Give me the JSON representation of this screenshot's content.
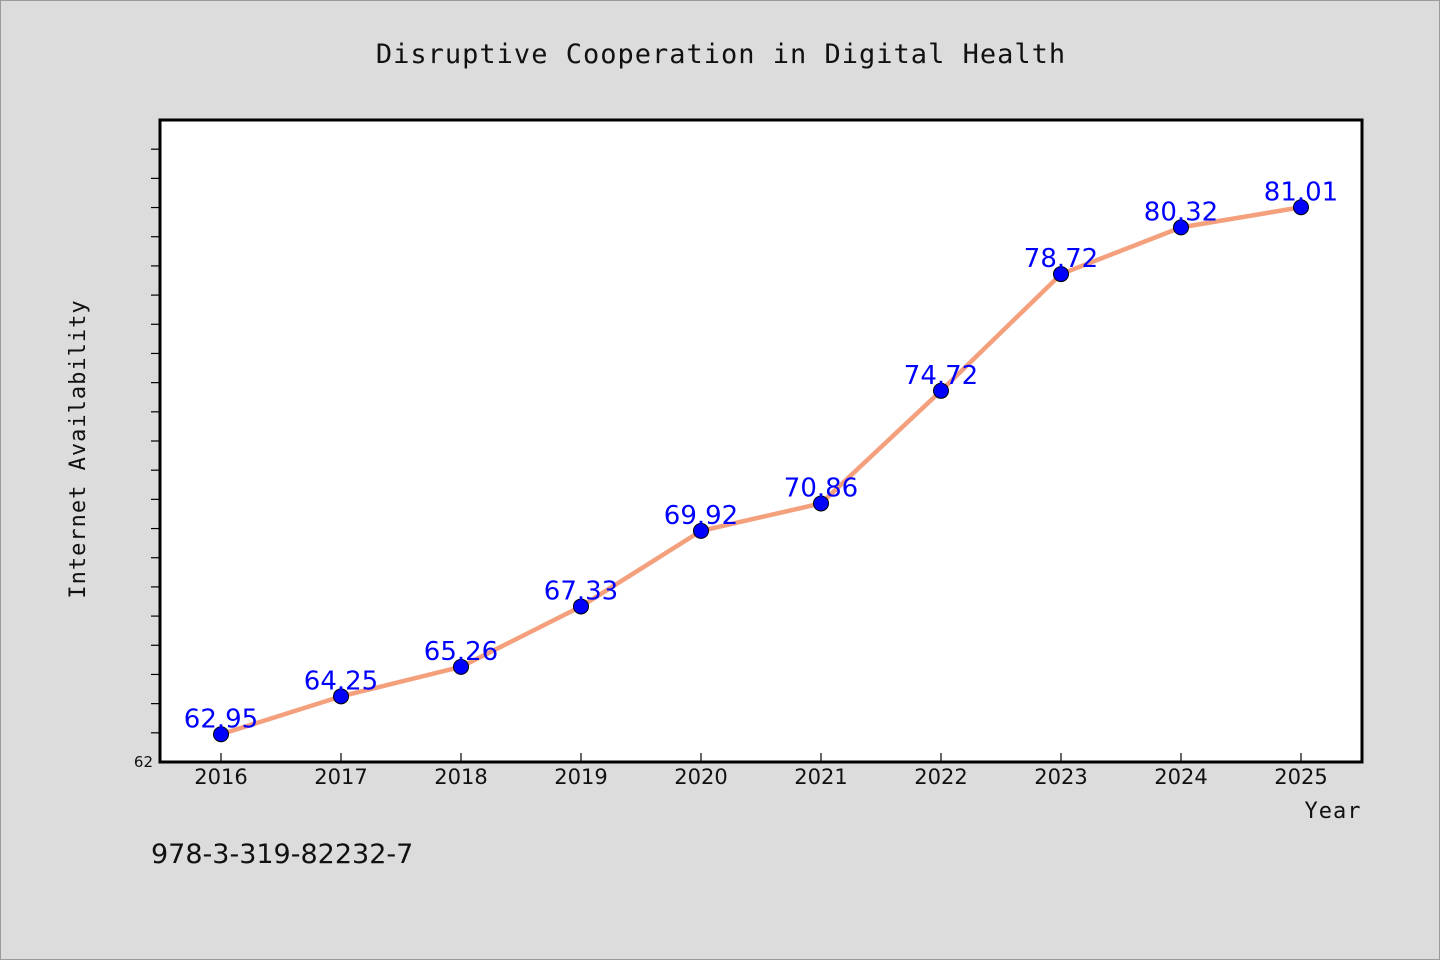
{
  "chart_data": {
    "type": "line",
    "title": "Disruptive Cooperation in Digital Health",
    "xlabel": "Year",
    "ylabel": "Internet Availability",
    "categories": [
      "2016",
      "2017",
      "2018",
      "2019",
      "2020",
      "2021",
      "2022",
      "2023",
      "2024",
      "2025"
    ],
    "series": [
      {
        "values": [
          62.95,
          64.25,
          65.26,
          67.33,
          69.92,
          70.86,
          74.72,
          78.72,
          80.32,
          81.01
        ],
        "data_labels": [
          "62.95",
          "64.25",
          "65.26",
          "67.33",
          "69.92",
          "70.86",
          "74.72",
          "78.72",
          "80.32",
          "81.01"
        ],
        "color": "#f4a07c",
        "marker_color": "#0000ff"
      }
    ],
    "ylim": [
      62,
      84
    ],
    "y_tick_label": "62",
    "grid": false,
    "legend": "none"
  },
  "footer": {
    "isbn": "978-3-319-82232-7"
  },
  "colors": {
    "background": "#dcdcdc",
    "plot_background": "#ffffff",
    "line": "#f4a07c",
    "marker": "#0000ff",
    "data_label": "#0000ff"
  }
}
